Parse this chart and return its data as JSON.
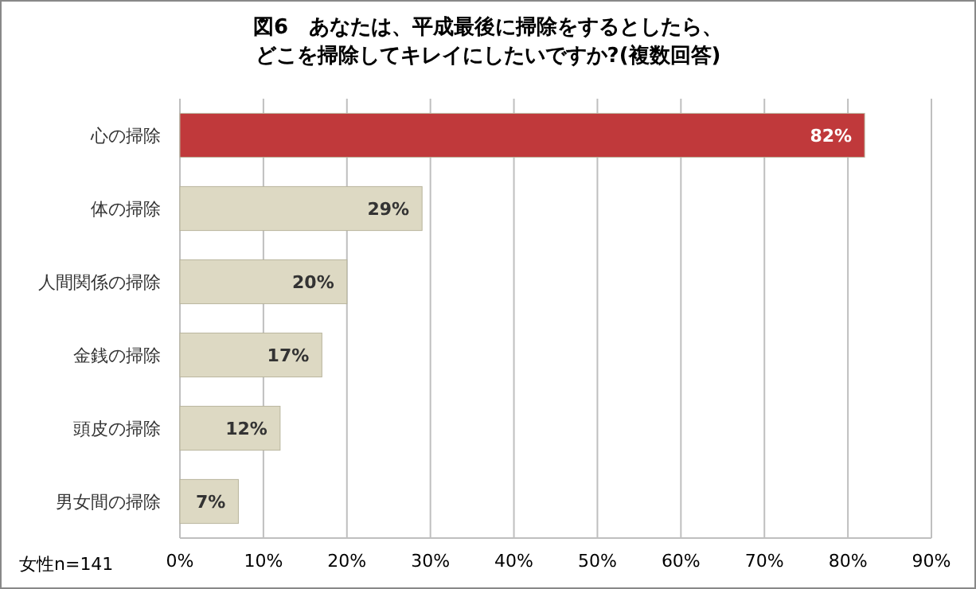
{
  "chart_data": {
    "type": "bar",
    "orientation": "horizontal",
    "title": "図6　あなたは、平成最後に掃除をするとしたら、どこを掃除してキレイにしたいですか?(複数回答)",
    "categories": [
      "心の掃除",
      "体の掃除",
      "人間関係の掃除",
      "金銭の掃除",
      "頭皮の掃除",
      "男女間の掃除"
    ],
    "values": [
      82,
      29,
      20,
      17,
      12,
      7
    ],
    "colors": [
      "#c0393b",
      "#ddd9c3",
      "#ddd9c3",
      "#ddd9c3",
      "#ddd9c3",
      "#ddd9c3"
    ],
    "value_labels": [
      "82%",
      "29%",
      "20%",
      "17%",
      "12%",
      "7%"
    ],
    "xlim": [
      0,
      90
    ],
    "xticks": [
      {
        "value": 0,
        "label": "0%"
      },
      {
        "value": 10,
        "label": "10%"
      },
      {
        "value": 20,
        "label": "20%"
      },
      {
        "value": 30,
        "label": "30%"
      },
      {
        "value": 40,
        "label": "40%"
      },
      {
        "value": 50,
        "label": "50%"
      },
      {
        "value": 60,
        "label": "60%"
      },
      {
        "value": 70,
        "label": "70%"
      },
      {
        "value": 80,
        "label": "80%"
      },
      {
        "value": 90,
        "label": "90%"
      }
    ],
    "grid": "x",
    "annotations": [
      "女性n=141"
    ]
  }
}
